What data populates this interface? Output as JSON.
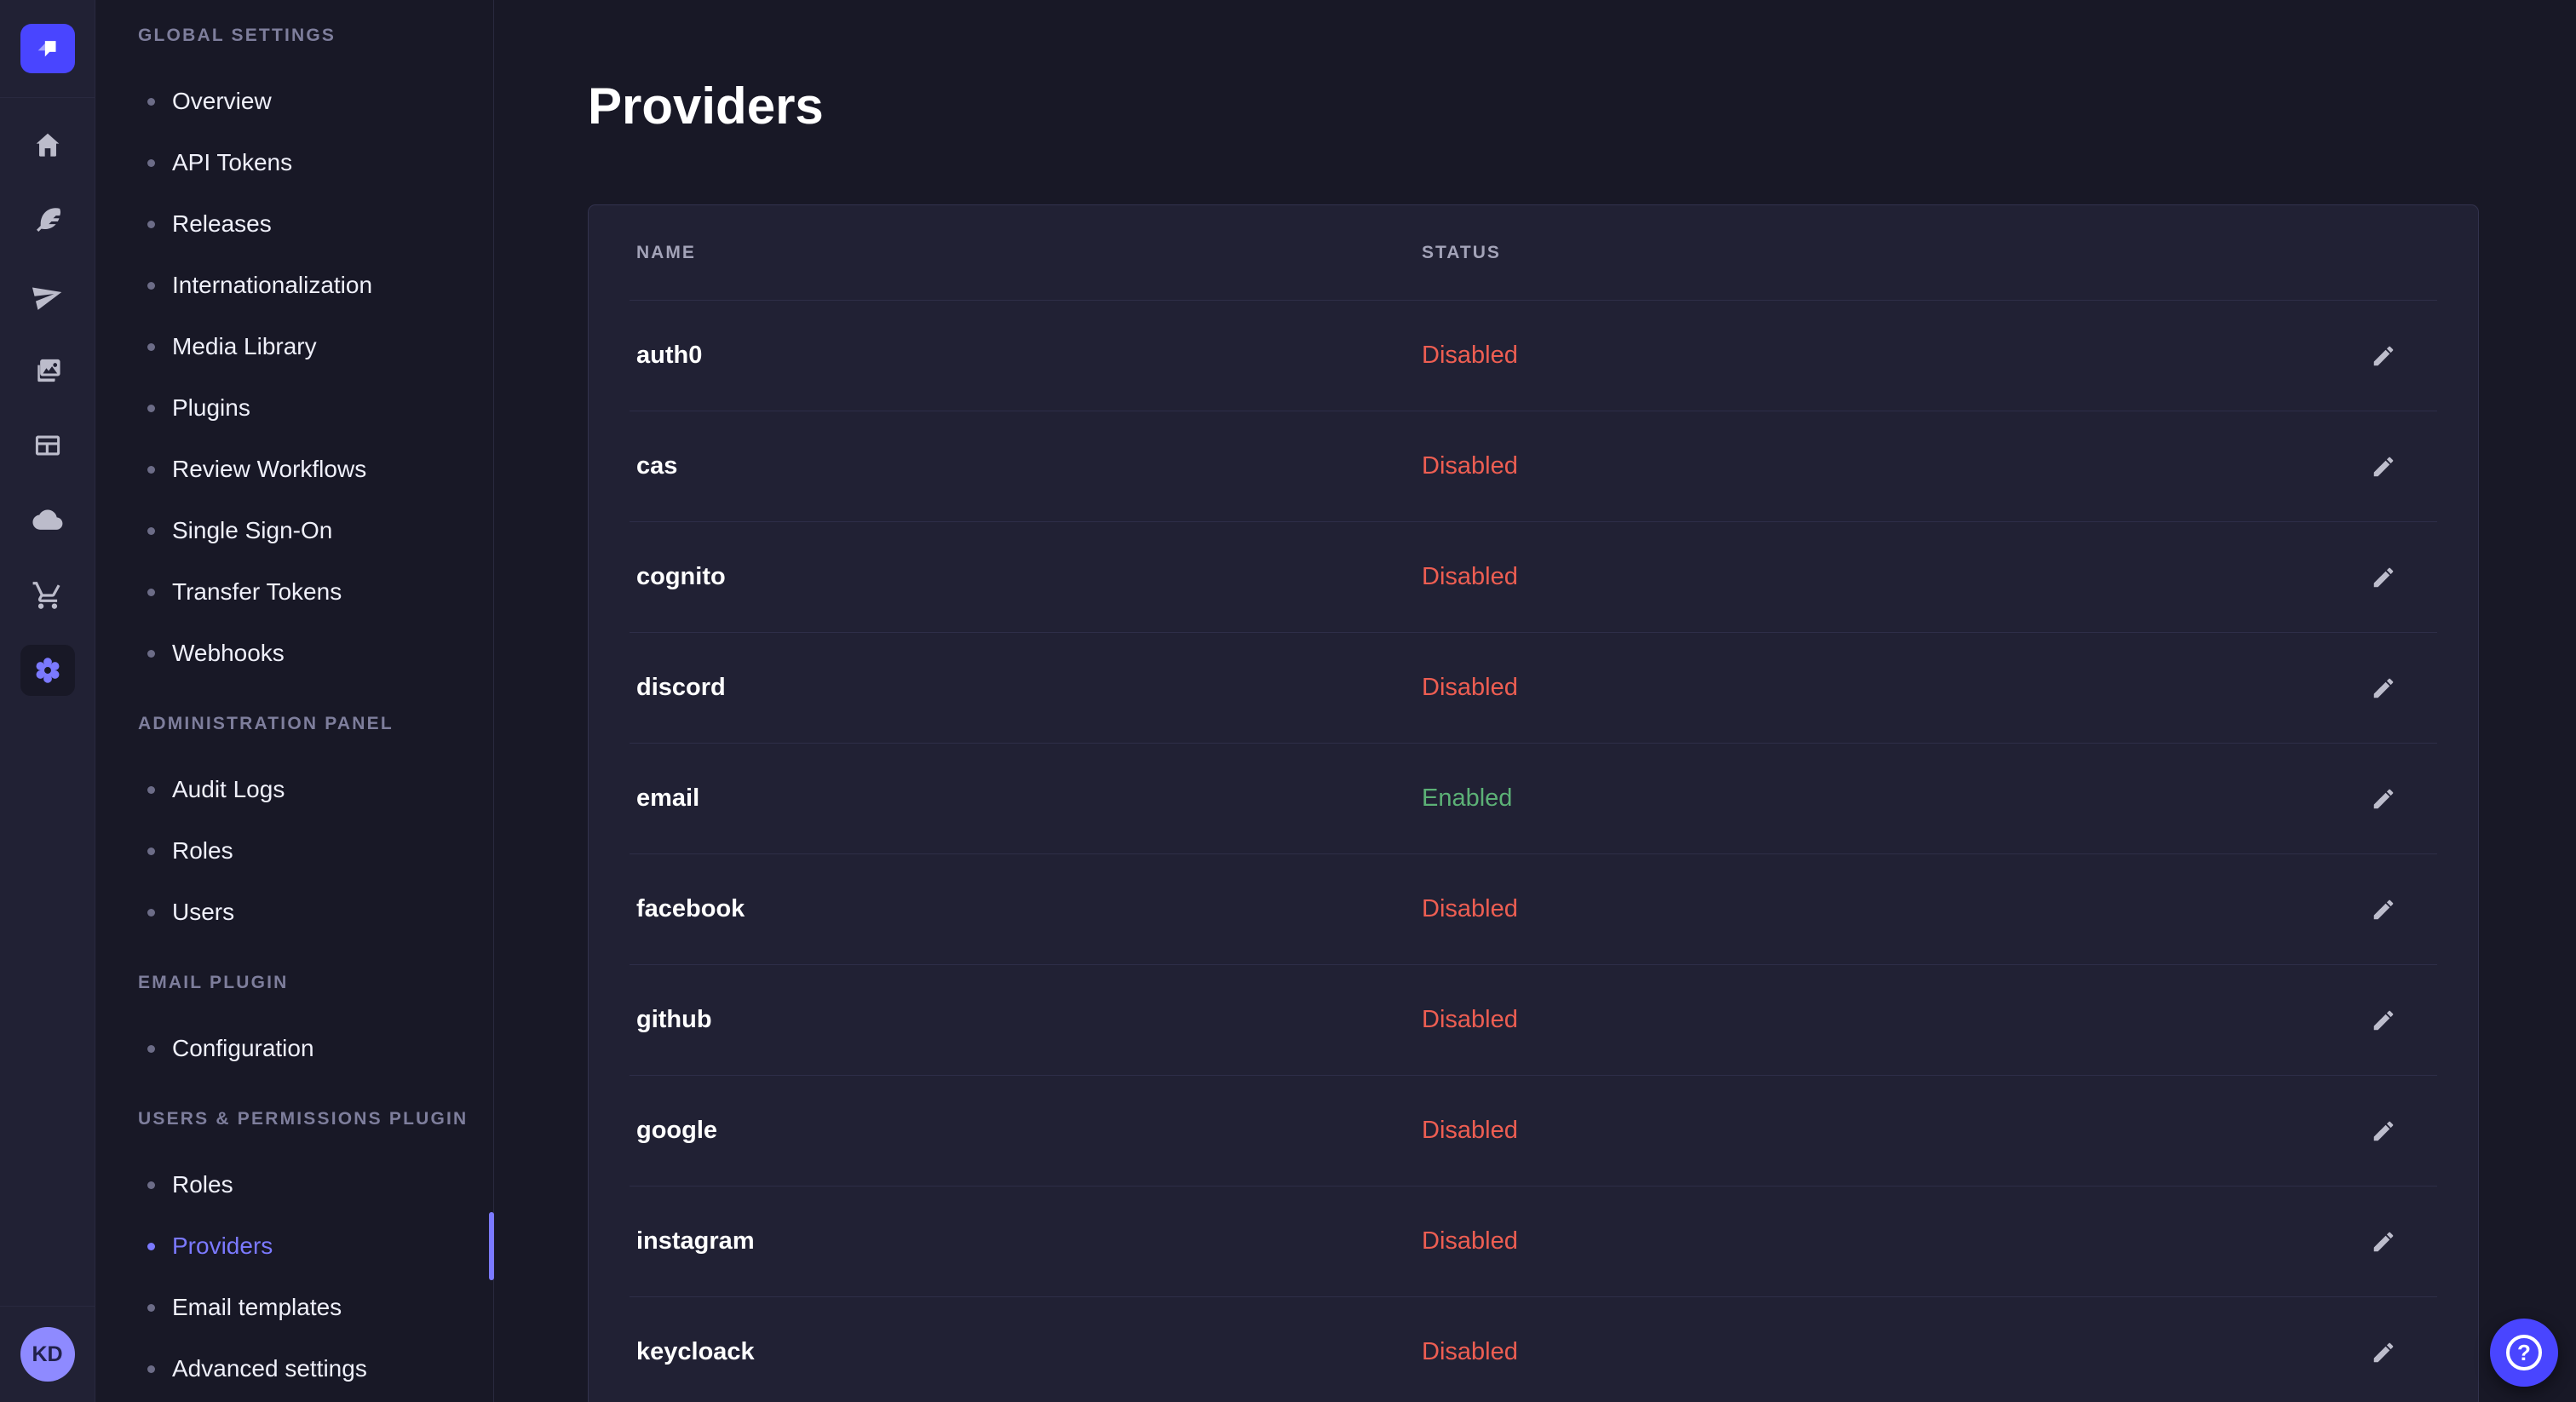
{
  "colors": {
    "primary": "#4945ff",
    "primary_light": "#7b79ff",
    "success": "#5cb176",
    "danger": "#ee5e52"
  },
  "rail": {
    "logo_icon": "strapi-logo-icon",
    "nav_icons": [
      {
        "name": "home-icon"
      },
      {
        "name": "feather-icon"
      },
      {
        "name": "paper-plane-icon"
      },
      {
        "name": "images-icon"
      },
      {
        "name": "layout-icon"
      },
      {
        "name": "cloud-icon"
      },
      {
        "name": "shopping-cart-icon"
      }
    ],
    "settings_icon": {
      "name": "gear-icon",
      "active": true
    },
    "avatar": {
      "initials": "KD"
    }
  },
  "sidebar": {
    "sections": [
      {
        "label": "GLOBAL SETTINGS",
        "items": [
          {
            "label": "Overview"
          },
          {
            "label": "API Tokens"
          },
          {
            "label": "Releases"
          },
          {
            "label": "Internationalization"
          },
          {
            "label": "Media Library"
          },
          {
            "label": "Plugins"
          },
          {
            "label": "Review Workflows"
          },
          {
            "label": "Single Sign-On"
          },
          {
            "label": "Transfer Tokens"
          },
          {
            "label": "Webhooks"
          }
        ]
      },
      {
        "label": "ADMINISTRATION PANEL",
        "items": [
          {
            "label": "Audit Logs"
          },
          {
            "label": "Roles"
          },
          {
            "label": "Users"
          }
        ]
      },
      {
        "label": "EMAIL PLUGIN",
        "items": [
          {
            "label": "Configuration"
          }
        ]
      },
      {
        "label": "USERS & PERMISSIONS PLUGIN",
        "items": [
          {
            "label": "Roles"
          },
          {
            "label": "Providers",
            "active": true
          },
          {
            "label": "Email templates"
          },
          {
            "label": "Advanced settings"
          }
        ]
      }
    ]
  },
  "main": {
    "title": "Providers",
    "table": {
      "columns": [
        "NAME",
        "STATUS"
      ],
      "edit_icon": "pencil-icon",
      "rows": [
        {
          "name": "auth0",
          "status": "Disabled"
        },
        {
          "name": "cas",
          "status": "Disabled"
        },
        {
          "name": "cognito",
          "status": "Disabled"
        },
        {
          "name": "discord",
          "status": "Disabled"
        },
        {
          "name": "email",
          "status": "Enabled"
        },
        {
          "name": "facebook",
          "status": "Disabled"
        },
        {
          "name": "github",
          "status": "Disabled"
        },
        {
          "name": "google",
          "status": "Disabled"
        },
        {
          "name": "instagram",
          "status": "Disabled"
        },
        {
          "name": "keycloack",
          "status": "Disabled"
        }
      ]
    }
  },
  "help": {
    "glyph": "?"
  }
}
